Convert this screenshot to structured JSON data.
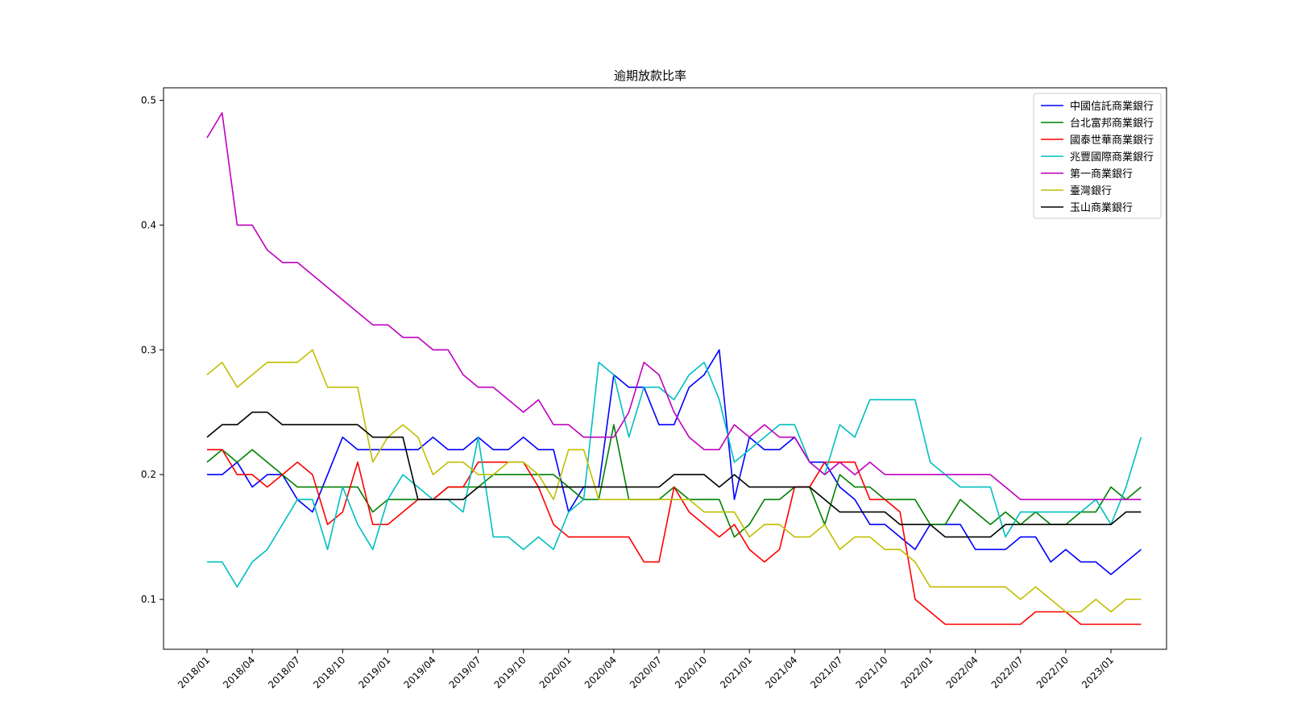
{
  "chart_data": {
    "type": "line",
    "title": "逾期放款比率",
    "xlabel": "",
    "ylabel": "",
    "ylim": [
      0.06,
      0.51
    ],
    "yticks": [
      0.1,
      0.2,
      0.3,
      0.4,
      0.5
    ],
    "xtick_labels": [
      "2018/01",
      "2018/04",
      "2018/07",
      "2018/10",
      "2019/01",
      "2019/04",
      "2019/07",
      "2019/10",
      "2020/01",
      "2020/04",
      "2020/07",
      "2020/10",
      "2021/01",
      "2021/04",
      "2021/07",
      "2021/10",
      "2022/01",
      "2022/04",
      "2022/07",
      "2022/10",
      "2023/01"
    ],
    "x_start": "2018/01",
    "grid": false,
    "legend_position": "top-right",
    "series": [
      {
        "name": "中國信託商業銀行",
        "color": "#0000ff",
        "values": [
          0.2,
          0.2,
          0.21,
          0.19,
          0.2,
          0.2,
          0.18,
          0.17,
          0.2,
          0.23,
          0.22,
          0.22,
          0.22,
          0.22,
          0.22,
          0.23,
          0.22,
          0.22,
          0.23,
          0.22,
          0.22,
          0.23,
          0.22,
          0.22,
          0.17,
          0.19,
          0.19,
          0.28,
          0.27,
          0.27,
          0.24,
          0.24,
          0.27,
          0.28,
          0.3,
          0.18,
          0.23,
          0.22,
          0.22,
          0.23,
          0.21,
          0.21,
          0.19,
          0.18,
          0.16,
          0.16,
          0.15,
          0.14,
          0.16,
          0.16,
          0.16,
          0.14,
          0.14,
          0.14,
          0.15,
          0.15,
          0.13,
          0.14,
          0.13,
          0.13,
          0.12,
          0.13,
          0.14
        ]
      },
      {
        "name": "台北富邦商業銀行",
        "color": "#008000",
        "values": [
          0.21,
          0.22,
          0.21,
          0.22,
          0.21,
          0.2,
          0.19,
          0.19,
          0.19,
          0.19,
          0.19,
          0.17,
          0.18,
          0.18,
          0.18,
          0.18,
          0.19,
          0.19,
          0.19,
          0.2,
          0.2,
          0.2,
          0.2,
          0.2,
          0.19,
          0.18,
          0.18,
          0.24,
          0.18,
          0.18,
          0.18,
          0.19,
          0.18,
          0.18,
          0.18,
          0.15,
          0.16,
          0.18,
          0.18,
          0.19,
          0.19,
          0.16,
          0.2,
          0.19,
          0.19,
          0.18,
          0.18,
          0.18,
          0.16,
          0.16,
          0.18,
          0.17,
          0.16,
          0.17,
          0.16,
          0.17,
          0.16,
          0.16,
          0.17,
          0.17,
          0.19,
          0.18,
          0.19
        ]
      },
      {
        "name": "國泰世華商業銀行",
        "color": "#ff0000",
        "values": [
          0.22,
          0.22,
          0.2,
          0.2,
          0.19,
          0.2,
          0.21,
          0.2,
          0.16,
          0.17,
          0.21,
          0.16,
          0.16,
          0.17,
          0.18,
          0.18,
          0.19,
          0.19,
          0.21,
          0.21,
          0.21,
          0.21,
          0.19,
          0.16,
          0.15,
          0.15,
          0.15,
          0.15,
          0.15,
          0.13,
          0.13,
          0.19,
          0.17,
          0.16,
          0.15,
          0.16,
          0.14,
          0.13,
          0.14,
          0.19,
          0.19,
          0.21,
          0.21,
          0.21,
          0.18,
          0.18,
          0.17,
          0.1,
          0.09,
          0.08,
          0.08,
          0.08,
          0.08,
          0.08,
          0.08,
          0.09,
          0.09,
          0.09,
          0.08,
          0.08,
          0.08,
          0.08,
          0.08
        ]
      },
      {
        "name": "兆豐國際商業銀行",
        "color": "#00bfbf",
        "values": [
          0.13,
          0.13,
          0.11,
          0.13,
          0.14,
          0.16,
          0.18,
          0.18,
          0.14,
          0.19,
          0.16,
          0.14,
          0.18,
          0.2,
          0.19,
          0.18,
          0.18,
          0.17,
          0.23,
          0.15,
          0.15,
          0.14,
          0.15,
          0.14,
          0.17,
          0.18,
          0.29,
          0.28,
          0.23,
          0.27,
          0.27,
          0.26,
          0.28,
          0.29,
          0.26,
          0.21,
          0.22,
          0.23,
          0.24,
          0.24,
          0.21,
          0.2,
          0.24,
          0.23,
          0.26,
          0.26,
          0.26,
          0.26,
          0.21,
          0.2,
          0.19,
          0.19,
          0.19,
          0.15,
          0.17,
          0.17,
          0.17,
          0.17,
          0.17,
          0.18,
          0.16,
          0.19,
          0.23
        ]
      },
      {
        "name": "第一商業銀行",
        "color": "#bf00bf",
        "values": [
          0.47,
          0.49,
          0.4,
          0.4,
          0.38,
          0.37,
          0.37,
          0.36,
          0.35,
          0.34,
          0.33,
          0.32,
          0.32,
          0.31,
          0.31,
          0.3,
          0.3,
          0.28,
          0.27,
          0.27,
          0.26,
          0.25,
          0.26,
          0.24,
          0.24,
          0.23,
          0.23,
          0.23,
          0.25,
          0.29,
          0.28,
          0.25,
          0.23,
          0.22,
          0.22,
          0.24,
          0.23,
          0.24,
          0.23,
          0.23,
          0.21,
          0.2,
          0.21,
          0.2,
          0.21,
          0.2,
          0.2,
          0.2,
          0.2,
          0.2,
          0.2,
          0.2,
          0.2,
          0.19,
          0.18,
          0.18,
          0.18,
          0.18,
          0.18,
          0.18,
          0.18,
          0.18,
          0.18
        ]
      },
      {
        "name": "臺灣銀行",
        "color": "#bfbf00",
        "values": [
          0.28,
          0.29,
          0.27,
          0.28,
          0.29,
          0.29,
          0.29,
          0.3,
          0.27,
          0.27,
          0.27,
          0.21,
          0.23,
          0.24,
          0.23,
          0.2,
          0.21,
          0.21,
          0.2,
          0.2,
          0.21,
          0.21,
          0.2,
          0.18,
          0.22,
          0.22,
          0.18,
          0.18,
          0.18,
          0.18,
          0.18,
          0.18,
          0.18,
          0.17,
          0.17,
          0.17,
          0.15,
          0.16,
          0.16,
          0.15,
          0.15,
          0.16,
          0.14,
          0.15,
          0.15,
          0.14,
          0.14,
          0.13,
          0.11,
          0.11,
          0.11,
          0.11,
          0.11,
          0.11,
          0.1,
          0.11,
          0.1,
          0.09,
          0.09,
          0.1,
          0.09,
          0.1,
          0.1
        ]
      },
      {
        "name": "玉山商業銀行",
        "color": "#000000",
        "values": [
          0.23,
          0.24,
          0.24,
          0.25,
          0.25,
          0.24,
          0.24,
          0.24,
          0.24,
          0.24,
          0.24,
          0.23,
          0.23,
          0.23,
          0.18,
          0.18,
          0.18,
          0.18,
          0.19,
          0.19,
          0.19,
          0.19,
          0.19,
          0.19,
          0.19,
          0.19,
          0.19,
          0.19,
          0.19,
          0.19,
          0.19,
          0.2,
          0.2,
          0.2,
          0.19,
          0.2,
          0.19,
          0.19,
          0.19,
          0.19,
          0.19,
          0.18,
          0.17,
          0.17,
          0.17,
          0.17,
          0.16,
          0.16,
          0.16,
          0.15,
          0.15,
          0.15,
          0.15,
          0.16,
          0.16,
          0.16,
          0.16,
          0.16,
          0.16,
          0.16,
          0.16,
          0.17,
          0.17
        ]
      }
    ]
  }
}
